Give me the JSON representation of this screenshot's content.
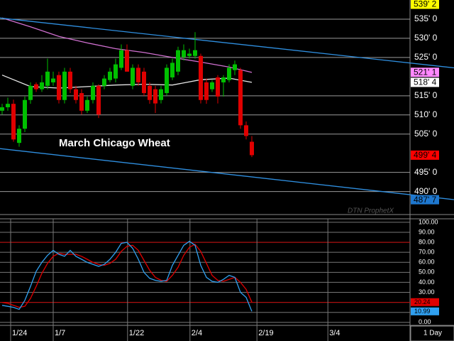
{
  "chart_data": [
    {
      "type": "candlestick",
      "annotation": "March Chicago Wheat",
      "watermark": "DTN ProphetX",
      "ylim": [
        484,
        540
      ],
      "yticks": [
        {
          "value": 535,
          "label": "535' 0"
        },
        {
          "value": 530,
          "label": "530' 0"
        },
        {
          "value": 525,
          "label": "525' 0"
        },
        {
          "value": 515,
          "label": "515' 0"
        },
        {
          "value": 510,
          "label": "510' 0"
        },
        {
          "value": 505,
          "label": "505' 0"
        },
        {
          "value": 495,
          "label": "495' 0"
        },
        {
          "value": 490,
          "label": "490' 0"
        }
      ],
      "up_color": "#00c000",
      "down_color": "#e00000",
      "open": [
        511.1,
        512.0,
        512.9,
        502.7,
        506.4,
        513.9,
        518.0,
        516.7,
        517.6,
        518.5,
        520.4,
        513.9,
        521.3,
        516.7,
        515.7,
        511.1,
        513.9,
        517.6,
        517.6,
        519.1,
        519.5,
        522.3,
        526.9,
        517.6,
        522.3,
        521.3,
        517.6,
        516.7,
        513.9,
        515.7,
        519.8,
        521.3,
        525.1,
        525.4,
        525.4,
        525.4,
        518.5,
        516.7,
        519.8,
        518.5,
        519.1,
        521.7,
        521.7,
        507.3,
        503.0
      ],
      "high": [
        512.9,
        514.5,
        514.0,
        507.3,
        514.8,
        518.5,
        518.5,
        520.4,
        524.7,
        521.3,
        521.3,
        522.3,
        522.3,
        517.6,
        516.7,
        514.8,
        518.5,
        518.0,
        520.4,
        522.3,
        524.7,
        528.4,
        528.4,
        523.2,
        523.2,
        522.3,
        518.5,
        517.6,
        517.6,
        523.2,
        524.7,
        527.8,
        528.4,
        527.3,
        531.6,
        526.0,
        519.5,
        519.1,
        520.4,
        520.4,
        523.2,
        524.2,
        522.3,
        508.3,
        504.5
      ],
      "low": [
        510.1,
        511.1,
        503.0,
        501.7,
        505.5,
        512.9,
        516.0,
        516.0,
        516.7,
        517.6,
        513.0,
        513.0,
        515.7,
        513.0,
        510.1,
        510.5,
        513.0,
        509.2,
        516.7,
        518.5,
        518.5,
        521.7,
        521.3,
        516.7,
        517.6,
        515.0,
        512.9,
        510.5,
        513.0,
        515.0,
        519.1,
        520.4,
        524.2,
        524.7,
        524.7,
        513.0,
        512.9,
        516.0,
        513.0,
        514.8,
        518.5,
        520.4,
        506.4,
        503.6,
        499.0
      ],
      "close": [
        512.0,
        512.9,
        503.6,
        506.4,
        513.9,
        517.6,
        516.7,
        518.5,
        521.3,
        519.5,
        513.9,
        521.3,
        516.7,
        513.9,
        511.1,
        513.9,
        517.6,
        510.1,
        519.5,
        521.3,
        523.2,
        526.9,
        521.3,
        522.3,
        518.5,
        515.7,
        513.9,
        513.0,
        516.7,
        522.3,
        523.6,
        526.9,
        526.9,
        526.0,
        526.9,
        513.9,
        513.9,
        518.5,
        514.8,
        519.8,
        522.3,
        523.2,
        507.3,
        504.5,
        499.5
      ],
      "series": [
        {
          "color": "#d070d0",
          "x": [
            0,
            5,
            10,
            15,
            20,
            25,
            30,
            35,
            40,
            44
          ],
          "values": [
            535.3,
            533.0,
            530.5,
            528.8,
            527.3,
            526.3,
            525.0,
            523.8,
            522.5,
            521.1
          ]
        },
        {
          "color": "#e8e8e8",
          "x": [
            0,
            5,
            10,
            15,
            20,
            25,
            30,
            35,
            40,
            44
          ],
          "values": [
            520.4,
            517.4,
            517.0,
            517.4,
            517.8,
            518.0,
            517.8,
            519.2,
            519.6,
            518.5
          ]
        },
        {
          "color": "#2f8fe0",
          "x": [
            -0.375,
            79.625
          ],
          "values": [
            535.3,
            522.3
          ]
        },
        {
          "color": "#2f8fe0",
          "x": [
            -0.375,
            79.625
          ],
          "values": [
            501.2,
            487.9
          ]
        }
      ],
      "price_labels": [
        {
          "value": 539.25,
          "label": "539' 2",
          "color": "#ffff00"
        },
        {
          "value": 521.125,
          "label": "521' 1",
          "color": "#ff88ff"
        },
        {
          "value": 518.5,
          "label": "518' 4",
          "color": "#ffffff"
        },
        {
          "value": 499.5,
          "label": "499' 4",
          "color": "#ff0000"
        },
        {
          "value": 487.875,
          "label": "487' 7",
          "color": "#1e78d0"
        }
      ]
    },
    {
      "type": "line",
      "ylim": [
        -3,
        103.5
      ],
      "yticks": [
        {
          "value": 100,
          "label": "100.00"
        },
        {
          "value": 90,
          "label": "90.00"
        },
        {
          "value": 80,
          "label": "80.00"
        },
        {
          "value": 70,
          "label": "70.00"
        },
        {
          "value": 60,
          "label": "60.00"
        },
        {
          "value": 50,
          "label": "50.00"
        },
        {
          "value": 40,
          "label": "40.00"
        },
        {
          "value": 30,
          "label": "30.00"
        },
        {
          "value": 20,
          "label": "20.00"
        },
        {
          "value": 10,
          "label": "10.00"
        },
        {
          "value": 0,
          "label": "0.00"
        }
      ],
      "levels": [
        80,
        20
      ],
      "level_color": "#c00000",
      "series": [
        {
          "color": "#e00000",
          "values": [
            20,
            19,
            17,
            15,
            16,
            24,
            36,
            49,
            59,
            66,
            69,
            68,
            68,
            68,
            66,
            63,
            60,
            58,
            57,
            59,
            63,
            71,
            76,
            77,
            72,
            62,
            52,
            45,
            42,
            41,
            47,
            55,
            67,
            75,
            78,
            71,
            59,
            47,
            42,
            41,
            43,
            45,
            40,
            33,
            20.24
          ]
        },
        {
          "color": "#30a0f0",
          "values": [
            17,
            16,
            15,
            13,
            22,
            36,
            51,
            60,
            67,
            72,
            68,
            66,
            72,
            66,
            63,
            60,
            58,
            56,
            58,
            63,
            70,
            79,
            80,
            74,
            63,
            50,
            44,
            42,
            41,
            42,
            57,
            67,
            77,
            81,
            77,
            57,
            45,
            41,
            40,
            43,
            47,
            45,
            30,
            25,
            10.99
          ]
        }
      ],
      "xticks": [
        {
          "value": 1.5,
          "label": "1/24"
        },
        {
          "value": 9,
          "label": "1/7"
        },
        {
          "value": 22.1,
          "label": "1/22"
        },
        {
          "value": 33.1,
          "label": "2/4"
        },
        {
          "value": 44.9,
          "label": "2/19"
        },
        {
          "value": 57.4,
          "label": "3/4"
        }
      ],
      "x_label": "1 Day"
    }
  ]
}
